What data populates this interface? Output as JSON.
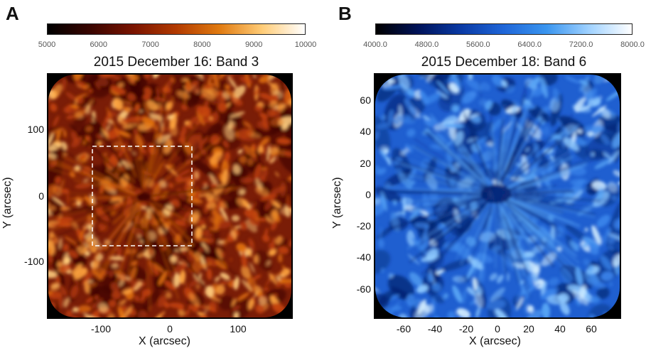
{
  "panels": [
    {
      "letter": "A",
      "title": "2015 December 16: Band 3",
      "colorbar": {
        "labels": [
          "5000",
          "6000",
          "7000",
          "8000",
          "9000",
          "10000"
        ],
        "colors": [
          "#000000",
          "#3a0500",
          "#7a1400",
          "#b23a00",
          "#e07a10",
          "#ffcc77",
          "#ffffff"
        ]
      },
      "y_ticks": [
        "100",
        "0",
        "-100"
      ],
      "x_ticks": [
        "-100",
        "0",
        "100"
      ],
      "xlabel": "X (arcsec)",
      "ylabel": "Y (arcsec)",
      "texture": {
        "base": "#7a1d07",
        "blob_colors": [
          "#c2420f",
          "#e0700f",
          "#ffa640",
          "#ffcf80"
        ],
        "dark": "#3a0600",
        "seed": 7
      }
    },
    {
      "letter": "B",
      "title": "2015 December 18: Band 6",
      "colorbar": {
        "labels": [
          "4000.0",
          "4800.0",
          "5600.0",
          "6400.0",
          "7200.0",
          "8000.0"
        ],
        "colors": [
          "#000000",
          "#00135a",
          "#0a3aa5",
          "#1f66d8",
          "#3a95ef",
          "#a0d2ff",
          "#ffffff"
        ]
      },
      "y_ticks": [
        "60",
        "40",
        "20",
        "0",
        "-20",
        "-40",
        "-60"
      ],
      "x_ticks": [
        "-60",
        "-40",
        "-20",
        "0",
        "20",
        "40",
        "60"
      ],
      "xlabel": "X (arcsec)",
      "ylabel": "Y (arcsec)",
      "texture": {
        "base": "#1f5fd0",
        "blob_colors": [
          "#3b85ea",
          "#5aa6f5",
          "#8fcaff",
          "#d6efff"
        ],
        "dark": "#06216e",
        "seed": 19
      }
    }
  ]
}
